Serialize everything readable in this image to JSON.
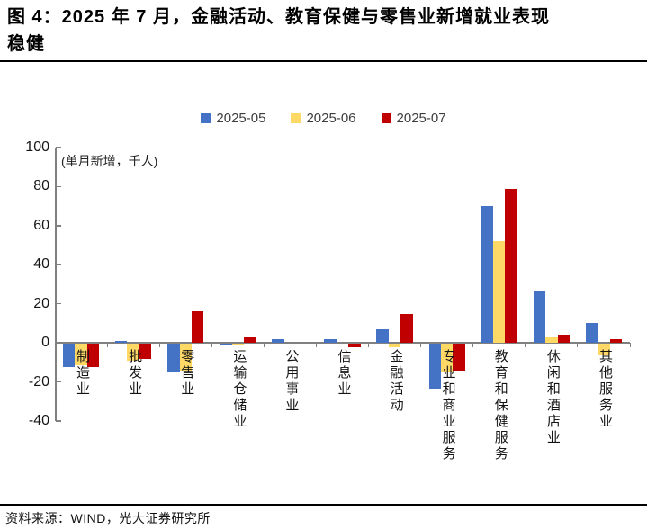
{
  "title": {
    "lines": [
      "图 4：2025 年 7 月，金融活动、教育保健与零售业新增就业表现",
      "稳健"
    ]
  },
  "source": "资料来源：WIND，光大证券研究所",
  "chart_data": {
    "type": "bar",
    "title": "图 4：2025 年 7 月，金融活动、教育保健与零售业新增就业表现稳健",
    "unit_note": "(单月新增，千人)",
    "categories": [
      "制造业",
      "批发业",
      "零售业",
      "运输仓储业",
      "公用事业",
      "信息业",
      "金融活动",
      "专业和商业服务",
      "教育和保健服务",
      "休闲和酒店业",
      "其他服务业"
    ],
    "series": [
      {
        "name": "2025-05",
        "color": "#4472C4",
        "values": [
          -12,
          1,
          -15,
          -1,
          2,
          2,
          7,
          -23,
          70,
          27,
          10
        ]
      },
      {
        "name": "2025-06",
        "color": "#FFD966",
        "values": [
          -11,
          -9,
          -14,
          -1,
          0,
          0,
          -2,
          -15,
          52,
          3,
          -6
        ]
      },
      {
        "name": "2025-07",
        "color": "#C00000",
        "values": [
          -12,
          -8,
          16,
          3,
          0,
          -2,
          15,
          -14,
          79,
          4,
          2
        ]
      }
    ],
    "ylim": [
      -40,
      100
    ],
    "yticks": [
      100,
      80,
      60,
      40,
      20,
      0,
      -20,
      -40
    ],
    "grid": false,
    "legend_position": "top-center",
    "axis_color": "#808080"
  }
}
